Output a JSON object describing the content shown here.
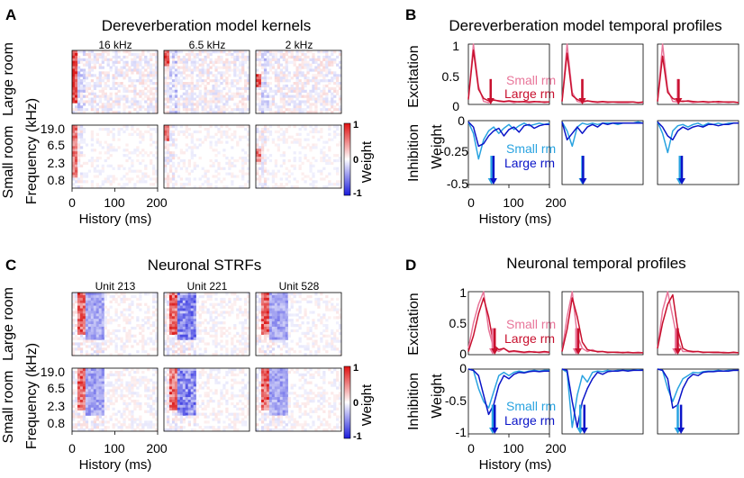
{
  "panels": {
    "A": {
      "letter": "A",
      "title": "Dereverberation model kernels",
      "columns": [
        "16 kHz",
        "6.5 kHz",
        "2 kHz"
      ],
      "row_labels": [
        "Large room",
        "Small room"
      ],
      "ylabel": "Frequency (kHz)",
      "yticks": [
        "19.0",
        "6.5",
        "2.3",
        "0.8"
      ],
      "xlabel": "History (ms)",
      "xticks": [
        "0",
        "100",
        "200"
      ],
      "colorbar": {
        "label": "Weight",
        "ticks": [
          "1",
          "0",
          "-1"
        ],
        "colors": [
          "#1a1adb",
          "#ffffff",
          "#e01010"
        ]
      }
    },
    "B": {
      "letter": "B",
      "title": "Dereverberation model temporal profiles",
      "ylabel_top": "Excitation",
      "ylabel_bottom": "Inhibition",
      "ylabel_shared": "Weight",
      "yticks_top": [
        "1",
        "0.5",
        "0"
      ],
      "yticks_bottom": [
        "0",
        "-0.25",
        "-0.5"
      ],
      "xlabel": "History (ms)",
      "xticks": [
        "0",
        "100",
        "200"
      ],
      "legend_exc": [
        "Small rm",
        "Large rm"
      ],
      "legend_inh": [
        "Small rm",
        "Large rm"
      ]
    },
    "C": {
      "letter": "C",
      "title": "Neuronal STRFs",
      "columns": [
        "Unit 213",
        "Unit 221",
        "Unit 528"
      ],
      "row_labels": [
        "Large room",
        "Small room"
      ],
      "ylabel": "Frequency (kHz)",
      "yticks": [
        "19.0",
        "6.5",
        "2.3",
        "0.8"
      ],
      "xlabel": "History (ms)",
      "xticks": [
        "0",
        "100",
        "200"
      ],
      "colorbar": {
        "label": "Weight",
        "ticks": [
          "1",
          "0",
          "-1"
        ]
      }
    },
    "D": {
      "letter": "D",
      "title": "Neuronal temporal profiles",
      "ylabel_top": "Excitation",
      "ylabel_bottom": "Inhibition",
      "ylabel_shared": "Weight",
      "yticks_top": [
        "1",
        "0.5",
        "0"
      ],
      "yticks_bottom": [
        "0",
        "-0.5",
        "-1"
      ],
      "xlabel": "History (ms)",
      "xticks": [
        "0",
        "100",
        "200"
      ],
      "legend_exc": [
        "Small rm",
        "Large rm"
      ],
      "legend_inh": [
        "Small rm",
        "Large rm"
      ]
    }
  },
  "colors": {
    "exc_small": "#e8769a",
    "exc_large": "#c8102e",
    "inh_small": "#29a3e0",
    "inh_large": "#0a14c8"
  },
  "chart_data": [
    {
      "id": "B",
      "type": "line",
      "x": [
        0,
        12.5,
        25,
        37.5,
        50,
        62.5,
        75,
        87.5,
        100,
        112.5,
        125,
        137.5,
        150,
        162.5,
        175,
        187.5,
        200
      ],
      "xlim": [
        0,
        200
      ],
      "ylim_excitation": [
        0,
        1
      ],
      "ylim_inhibition": [
        -0.5,
        0
      ],
      "subplots": [
        {
          "excitation": [
            {
              "name": "Small rm",
              "values": [
                0.1,
                1.0,
                0.3,
                0.05,
                0.03,
                0.08,
                0.05,
                0.04,
                0.05,
                0.03,
                0.05,
                0.04,
                0.03,
                0.04,
                0.05,
                0.03,
                0.04
              ]
            },
            {
              "name": "Large rm",
              "values": [
                0.08,
                0.9,
                0.25,
                0.1,
                0.06,
                0.07,
                0.06,
                0.05,
                0.06,
                0.05,
                0.04,
                0.05,
                0.04,
                0.05,
                0.04,
                0.04,
                0.04
              ]
            }
          ],
          "inhibition": [
            {
              "name": "Small rm",
              "values": [
                -0.01,
                -0.1,
                -0.3,
                -0.15,
                -0.08,
                -0.05,
                -0.1,
                -0.06,
                -0.03,
                -0.07,
                -0.04,
                -0.02,
                -0.04,
                -0.03,
                -0.02,
                -0.03,
                -0.02
              ]
            },
            {
              "name": "Large rm",
              "values": [
                -0.01,
                -0.05,
                -0.2,
                -0.18,
                -0.12,
                -0.08,
                -0.06,
                -0.12,
                -0.07,
                -0.05,
                -0.09,
                -0.04,
                -0.03,
                -0.06,
                -0.04,
                -0.03,
                -0.03
              ]
            }
          ],
          "center_of_mass_ms": {
            "exc_small": 55,
            "exc_large": 55,
            "inh_small": 57,
            "inh_large": 62
          }
        },
        {
          "excitation": [
            {
              "name": "Small rm",
              "values": [
                0.05,
                1.0,
                0.2,
                0.05,
                0.03,
                0.06,
                0.04,
                0.03,
                0.04,
                0.03,
                0.04,
                0.03,
                0.03,
                0.03,
                0.04,
                0.03,
                0.03
              ]
            },
            {
              "name": "Large rm",
              "values": [
                0.05,
                0.85,
                0.15,
                0.08,
                0.05,
                0.06,
                0.05,
                0.04,
                0.05,
                0.04,
                0.04,
                0.04,
                0.04,
                0.04,
                0.04,
                0.03,
                0.04
              ]
            }
          ],
          "inhibition": [
            {
              "name": "Small rm",
              "values": [
                -0.01,
                -0.08,
                -0.2,
                -0.05,
                -0.02,
                -0.03,
                -0.02,
                -0.03,
                -0.02,
                -0.02,
                -0.02,
                -0.03,
                -0.02,
                -0.02,
                -0.02,
                -0.01,
                -0.02
              ]
            },
            {
              "name": "Large rm",
              "values": [
                -0.01,
                -0.15,
                -0.1,
                -0.05,
                -0.1,
                -0.05,
                -0.03,
                -0.05,
                -0.02,
                -0.03,
                -0.02,
                -0.02,
                -0.02,
                -0.02,
                -0.02,
                -0.02,
                -0.02
              ]
            }
          ],
          "center_of_mass_ms": {
            "exc_small": 50,
            "exc_large": 50,
            "inh_small": 50,
            "inh_large": 52
          }
        },
        {
          "excitation": [
            {
              "name": "Small rm",
              "values": [
                0.05,
                1.0,
                0.25,
                0.05,
                0.04,
                0.06,
                0.05,
                0.03,
                0.04,
                0.04,
                0.03,
                0.05,
                0.03,
                0.04,
                0.03,
                0.04,
                0.03
              ]
            },
            {
              "name": "Large rm",
              "values": [
                0.05,
                0.8,
                0.2,
                0.1,
                0.06,
                0.05,
                0.06,
                0.05,
                0.04,
                0.05,
                0.04,
                0.04,
                0.05,
                0.04,
                0.04,
                0.04,
                0.03
              ]
            }
          ],
          "inhibition": [
            {
              "name": "Small rm",
              "values": [
                -0.01,
                -0.1,
                -0.25,
                -0.08,
                -0.04,
                -0.03,
                -0.05,
                -0.03,
                -0.02,
                -0.04,
                -0.02,
                -0.03,
                -0.02,
                -0.03,
                -0.02,
                -0.02,
                -0.02
              ]
            },
            {
              "name": "Large rm",
              "values": [
                -0.01,
                -0.05,
                -0.12,
                -0.15,
                -0.08,
                -0.05,
                -0.07,
                -0.05,
                -0.04,
                -0.05,
                -0.03,
                -0.03,
                -0.04,
                -0.03,
                -0.03,
                -0.02,
                -0.02
              ]
            }
          ],
          "center_of_mass_ms": {
            "exc_small": 50,
            "exc_large": 52,
            "inh_small": 55,
            "inh_large": 60
          }
        }
      ]
    },
    {
      "id": "D",
      "type": "line",
      "x": [
        0,
        12.5,
        25,
        37.5,
        50,
        62.5,
        75,
        87.5,
        100,
        112.5,
        125,
        137.5,
        150,
        162.5,
        175,
        187.5,
        200
      ],
      "xlim": [
        0,
        200
      ],
      "ylim_excitation": [
        0,
        1
      ],
      "ylim_inhibition": [
        -1,
        0
      ],
      "subplots": [
        {
          "excitation": [
            {
              "name": "Small rm",
              "values": [
                0.1,
                0.5,
                0.8,
                1.0,
                0.4,
                0.1,
                0.05,
                0.1,
                0.04,
                0.05,
                0.04,
                0.03,
                0.04,
                0.05,
                0.03,
                0.04,
                0.03
              ]
            },
            {
              "name": "Large rm",
              "values": [
                0.05,
                0.3,
                0.65,
                0.9,
                0.6,
                0.15,
                0.08,
                0.1,
                0.05,
                0.06,
                0.05,
                0.04,
                0.05,
                0.04,
                0.04,
                0.05,
                0.04
              ]
            }
          ],
          "inhibition": [
            {
              "name": "Small rm",
              "values": [
                0,
                -0.02,
                -0.3,
                -0.5,
                -0.6,
                -0.35,
                -0.1,
                -0.05,
                -0.1,
                -0.05,
                -0.03,
                -0.05,
                -0.03,
                -0.02,
                -0.03,
                -0.02,
                -0.02
              ]
            },
            {
              "name": "Large rm",
              "values": [
                0,
                -0.02,
                -0.1,
                -0.4,
                -0.7,
                -0.55,
                -0.25,
                -0.1,
                -0.15,
                -0.08,
                -0.05,
                -0.06,
                -0.04,
                -0.03,
                -0.04,
                -0.03,
                -0.03
              ]
            }
          ],
          "center_of_mass_ms": {
            "exc_small": 60,
            "exc_large": 65,
            "inh_small": 60,
            "inh_large": 65
          }
        },
        {
          "excitation": [
            {
              "name": "Small rm",
              "values": [
                0.05,
                0.6,
                1.0,
                0.3,
                0.1,
                0.05,
                0.08,
                0.04,
                0.05,
                0.03,
                0.04,
                0.03,
                0.04,
                0.03,
                0.03,
                0.04,
                0.03
              ]
            },
            {
              "name": "Large rm",
              "values": [
                0.05,
                0.4,
                0.9,
                0.6,
                0.2,
                0.08,
                0.06,
                0.05,
                0.05,
                0.04,
                0.04,
                0.04,
                0.03,
                0.04,
                0.03,
                0.03,
                0.03
              ]
            }
          ],
          "inhibition": [
            {
              "name": "Small rm",
              "values": [
                0,
                -0.05,
                -0.9,
                -0.4,
                -0.1,
                -0.2,
                -0.05,
                -0.03,
                -0.04,
                -0.02,
                -0.03,
                -0.02,
                -0.02,
                -0.02,
                -0.02,
                -0.01,
                -0.02
              ]
            },
            {
              "name": "Large rm",
              "values": [
                0,
                -0.02,
                -0.5,
                -0.9,
                -0.5,
                -0.3,
                -0.15,
                -0.05,
                -0.08,
                -0.04,
                -0.03,
                -0.03,
                -0.02,
                -0.03,
                -0.02,
                -0.02,
                -0.02
              ]
            }
          ],
          "center_of_mass_ms": {
            "exc_small": 35,
            "exc_large": 40,
            "inh_small": 45,
            "inh_large": 55
          }
        },
        {
          "excitation": [
            {
              "name": "Small rm",
              "values": [
                0.1,
                0.7,
                1.0,
                0.6,
                0.2,
                0.05,
                0.05,
                0.04,
                0.05,
                0.03,
                0.04,
                0.03,
                0.03,
                0.04,
                0.03,
                0.03,
                0.03
              ]
            },
            {
              "name": "Large rm",
              "values": [
                0.1,
                0.5,
                0.8,
                0.95,
                0.4,
                0.1,
                0.06,
                0.05,
                0.05,
                0.04,
                0.04,
                0.04,
                0.04,
                0.03,
                0.03,
                0.04,
                0.03
              ]
            }
          ],
          "inhibition": [
            {
              "name": "Small rm",
              "values": [
                0,
                -0.02,
                -0.3,
                -0.5,
                -0.3,
                -0.15,
                -0.1,
                -0.05,
                -0.06,
                -0.04,
                -0.03,
                -0.03,
                -0.02,
                -0.03,
                -0.02,
                -0.02,
                -0.02
              ]
            },
            {
              "name": "Large rm",
              "values": [
                0,
                -0.02,
                -0.15,
                -0.6,
                -0.55,
                -0.3,
                -0.15,
                -0.08,
                -0.1,
                -0.05,
                -0.04,
                -0.04,
                -0.03,
                -0.03,
                -0.03,
                -0.02,
                -0.02
              ]
            }
          ],
          "center_of_mass_ms": {
            "exc_small": 45,
            "exc_large": 50,
            "inh_small": 50,
            "inh_large": 58
          }
        }
      ]
    },
    {
      "id": "A",
      "type": "heatmap",
      "description": "Model kernels: 3 columns × 2 rooms; red = excitatory, blue = inhibitory weights",
      "xlim": [
        0,
        200
      ],
      "clim": [
        -1,
        1
      ]
    },
    {
      "id": "C",
      "type": "heatmap",
      "description": "Neuronal STRFs: 3 units × 2 rooms",
      "xlim": [
        0,
        200
      ],
      "clim": [
        -1,
        1
      ]
    }
  ]
}
